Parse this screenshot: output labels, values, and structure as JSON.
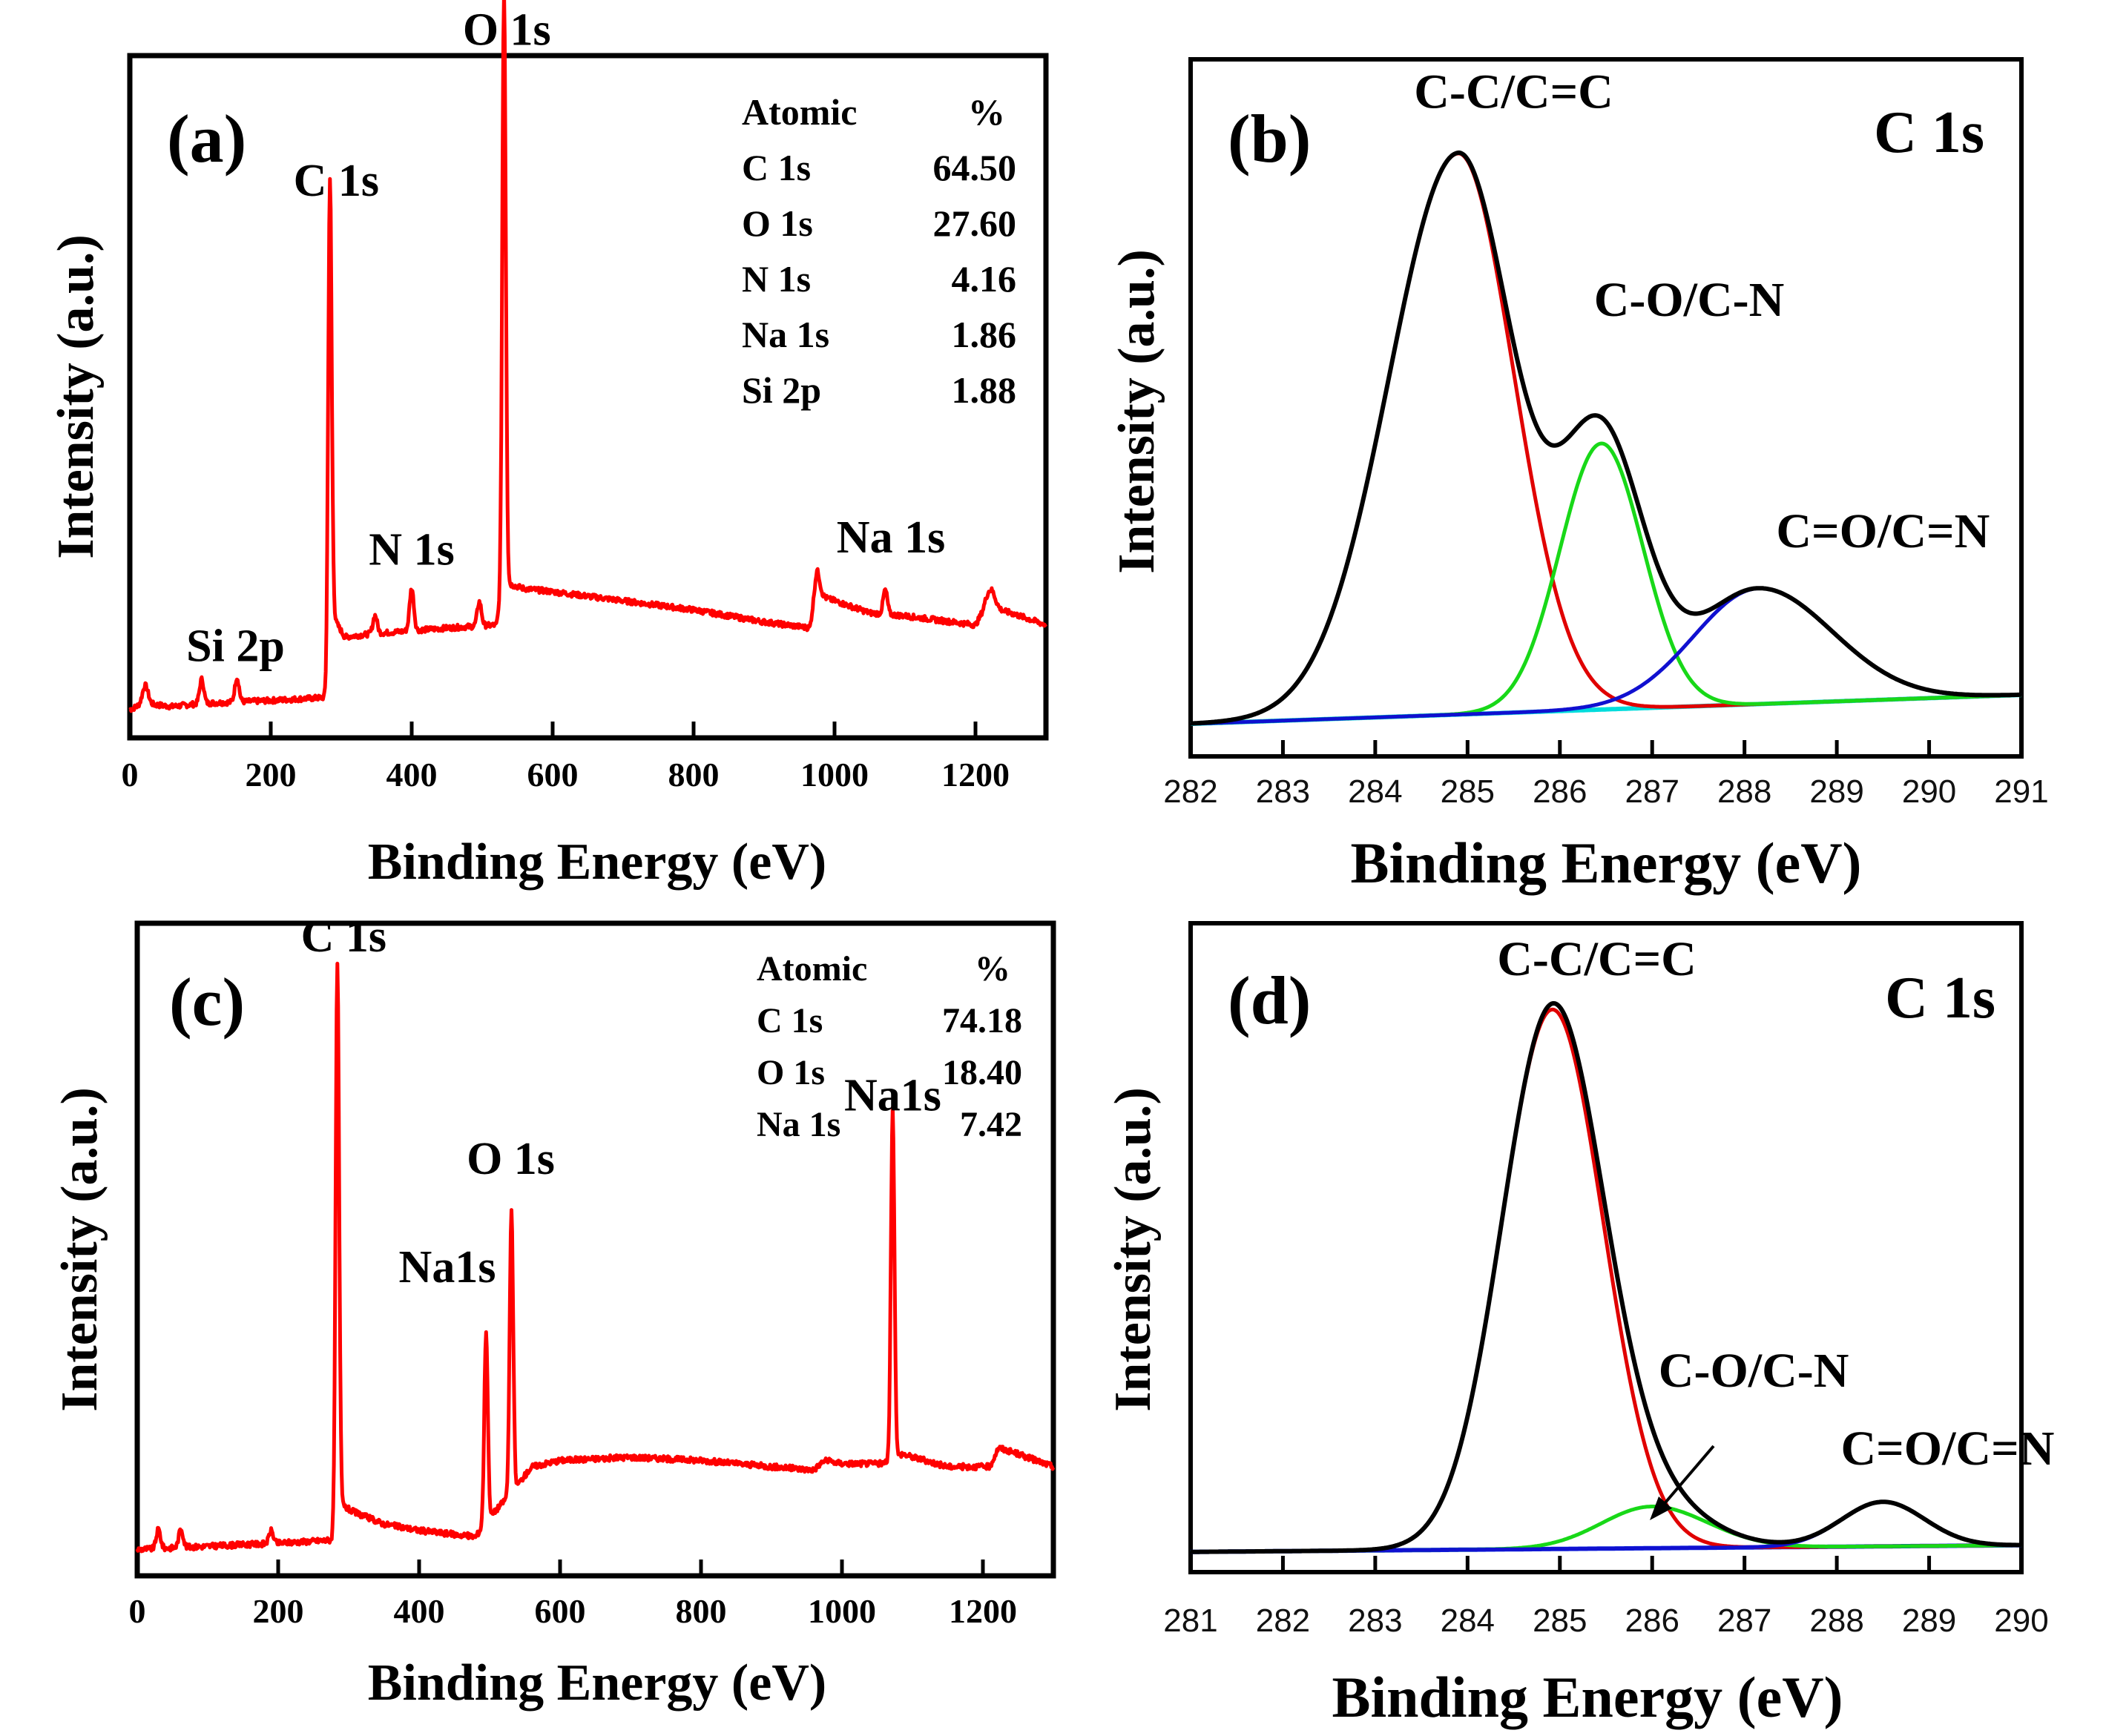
{
  "chart_data": [
    {
      "panel": "a",
      "type": "line",
      "panel_label": "(a)",
      "xlabel": "Binding Energy (eV)",
      "ylabel": "Intensity (a.u.)",
      "xlim": [
        0,
        1300
      ],
      "ylim": [
        0,
        100
      ],
      "xticks": [
        "0",
        "200",
        "400",
        "600",
        "800",
        "1000",
        "1200"
      ],
      "xtick_values": [
        0,
        200,
        400,
        600,
        800,
        1000,
        1200
      ],
      "color": "#ff0000",
      "baseline": [
        [
          0,
          1
        ],
        [
          20,
          2
        ],
        [
          60,
          1.5
        ],
        [
          100,
          2
        ],
        [
          200,
          2.5
        ],
        [
          278,
          3
        ],
        [
          290,
          16
        ],
        [
          305,
          13
        ],
        [
          340,
          13.5
        ],
        [
          395,
          14
        ],
        [
          450,
          14.5
        ],
        [
          520,
          15
        ],
        [
          531,
          22
        ],
        [
          560,
          21
        ],
        [
          600,
          20.5
        ],
        [
          700,
          19
        ],
        [
          800,
          17.5
        ],
        [
          900,
          15.5
        ],
        [
          965,
          14.5
        ],
        [
          975,
          20
        ],
        [
          1000,
          19
        ],
        [
          1050,
          17
        ],
        [
          1100,
          16.5
        ],
        [
          1200,
          15
        ],
        [
          1215,
          18
        ],
        [
          1250,
          17
        ],
        [
          1300,
          15
        ]
      ],
      "peaks": [
        {
          "x": 22,
          "height": 3,
          "width": 4
        },
        {
          "x": 102,
          "height": 4,
          "width": 3
        },
        {
          "x": 152,
          "height": 4,
          "width": 3
        },
        {
          "x": 284,
          "height": 79,
          "width": 2.5
        },
        {
          "x": 348,
          "height": 3,
          "width": 3
        },
        {
          "x": 400,
          "height": 7,
          "width": 3
        },
        {
          "x": 496,
          "height": 4,
          "width": 3
        },
        {
          "x": 531,
          "height": 98,
          "width": 2.5
        },
        {
          "x": 975,
          "height": 4,
          "width": 4
        },
        {
          "x": 1072,
          "height": 4,
          "width": 3
        },
        {
          "x": 1222,
          "height": 3,
          "width": 6
        }
      ],
      "annotations": [
        {
          "text": "Si 2p",
          "x": 150,
          "y": 9,
          "anchor": "middle"
        },
        {
          "text": "C 1s",
          "x": 293,
          "y": 86,
          "anchor": "middle"
        },
        {
          "text": "N 1s",
          "x": 400,
          "y": 25,
          "anchor": "middle"
        },
        {
          "text": "O 1s",
          "x": 535,
          "y": 111,
          "anchor": "middle"
        },
        {
          "text": "Na 1s",
          "x": 1080,
          "y": 27,
          "anchor": "middle"
        }
      ],
      "table": {
        "header": [
          "Atomic",
          "%"
        ],
        "rows": [
          [
            "C 1s",
            "64.50"
          ],
          [
            "O 1s",
            "27.60"
          ],
          [
            "N 1s",
            "4.16"
          ],
          [
            "Na 1s",
            "1.86"
          ],
          [
            "Si 2p",
            "1.88"
          ]
        ]
      }
    },
    {
      "panel": "b",
      "type": "line",
      "panel_label": "(b)",
      "title": "C 1s",
      "xlabel": "Binding Energy (eV)",
      "ylabel": "Intensity (a.u.)",
      "xlim": [
        282,
        291
      ],
      "ylim": [
        0,
        100
      ],
      "xticks": [
        "282",
        "283",
        "284",
        "285",
        "286",
        "287",
        "288",
        "289",
        "290",
        "291"
      ],
      "xtick_values": [
        282,
        283,
        284,
        285,
        286,
        287,
        288,
        289,
        290,
        291
      ],
      "components": [
        {
          "name": "C-C/C=C",
          "color": "#e00000",
          "center": 284.9,
          "height": 97,
          "sigma_left": 0.75,
          "sigma_right": 0.6
        },
        {
          "name": "C-O/C-N",
          "color": "#18d818",
          "center": 286.45,
          "height": 46,
          "sigma_left": 0.45,
          "sigma_right": 0.45
        },
        {
          "name": "C=O/C=N",
          "color": "#1010d0",
          "center": 288.15,
          "height": 20,
          "sigma_left": 0.7,
          "sigma_right": 0.8
        }
      ],
      "background": {
        "name": "background",
        "color": "#00dcdc",
        "start": 0.5,
        "end": 5.5
      },
      "envelope_color": "#000000",
      "annotations": [
        {
          "text": "C-C/C=C",
          "x": 285.5,
          "y": 107,
          "anchor": "middle"
        },
        {
          "text": "C-O/C-N",
          "x": 287.4,
          "y": 71,
          "anchor": "middle"
        },
        {
          "text": "C=O/C=N",
          "x": 289.5,
          "y": 31,
          "anchor": "middle"
        }
      ]
    },
    {
      "panel": "c",
      "type": "line",
      "panel_label": "(c)",
      "xlabel": "Binding Energy (eV)",
      "ylabel": "Intensity (a.u.)",
      "xlim": [
        0,
        1300
      ],
      "ylim": [
        0,
        100
      ],
      "xticks": [
        "0",
        "200",
        "400",
        "600",
        "800",
        "1000",
        "1200"
      ],
      "xtick_values": [
        0,
        200,
        400,
        600,
        800,
        1000,
        1200
      ],
      "color": "#ff0000",
      "baseline": [
        [
          0,
          1
        ],
        [
          100,
          1.5
        ],
        [
          200,
          2
        ],
        [
          280,
          2.5
        ],
        [
          290,
          8
        ],
        [
          305,
          7
        ],
        [
          350,
          5
        ],
        [
          400,
          4
        ],
        [
          480,
          3
        ],
        [
          500,
          6
        ],
        [
          531,
          10
        ],
        [
          560,
          14
        ],
        [
          600,
          15
        ],
        [
          700,
          15.5
        ],
        [
          800,
          15
        ],
        [
          900,
          14
        ],
        [
          960,
          13.5
        ],
        [
          975,
          15
        ],
        [
          1000,
          14.5
        ],
        [
          1060,
          14.5
        ],
        [
          1085,
          16
        ],
        [
          1150,
          14
        ],
        [
          1210,
          14
        ],
        [
          1222,
          17
        ],
        [
          1250,
          16
        ],
        [
          1300,
          14
        ]
      ],
      "peaks": [
        {
          "x": 30,
          "height": 3,
          "width": 3
        },
        {
          "x": 62,
          "height": 3,
          "width": 3
        },
        {
          "x": 190,
          "height": 2,
          "width": 3
        },
        {
          "x": 284,
          "height": 88,
          "width": 2.5
        },
        {
          "x": 495,
          "height": 30,
          "width": 2.5
        },
        {
          "x": 531,
          "height": 44,
          "width": 2.5
        },
        {
          "x": 1072,
          "height": 55,
          "width": 2.5
        }
      ],
      "annotations": [
        {
          "text": "C 1s",
          "x": 293,
          "y": 95,
          "anchor": "middle"
        },
        {
          "text": "Na1s",
          "x": 440,
          "y": 43,
          "anchor": "middle"
        },
        {
          "text": "O 1s",
          "x": 530,
          "y": 60,
          "anchor": "middle"
        },
        {
          "text": "Na1s",
          "x": 1072,
          "y": 70,
          "anchor": "middle"
        }
      ],
      "table": {
        "header": [
          "Atomic",
          "%"
        ],
        "rows": [
          [
            "C 1s",
            "74.18"
          ],
          [
            "O 1s",
            "18.40"
          ],
          [
            "Na 1s",
            "7.42"
          ]
        ]
      }
    },
    {
      "panel": "d",
      "type": "line",
      "panel_label": "(d)",
      "title": "C 1s",
      "xlabel": "Binding Energy (eV)",
      "ylabel": "Intensity (a.u.)",
      "xlim": [
        281,
        290
      ],
      "ylim": [
        0,
        100
      ],
      "xticks": [
        "281",
        "282",
        "283",
        "284",
        "285",
        "286",
        "287",
        "288",
        "289",
        "290"
      ],
      "xtick_values": [
        281,
        282,
        283,
        284,
        285,
        286,
        287,
        288,
        289,
        290
      ],
      "components": [
        {
          "name": "C-C/C=C",
          "color": "#e00000",
          "center": 284.92,
          "height": 97,
          "sigma_left": 0.55,
          "sigma_right": 0.55
        },
        {
          "name": "C-O/C-N",
          "color": "#18d818",
          "center": 286.0,
          "height": 7.5,
          "sigma_left": 0.55,
          "sigma_right": 0.6
        },
        {
          "name": "C=O/C=N",
          "color": "#1010d0",
          "center": 288.5,
          "height": 8,
          "sigma_left": 0.45,
          "sigma_right": 0.45
        }
      ],
      "background": {
        "name": "background",
        "color": "#1030e0",
        "start": 0.3,
        "end": 1.5
      },
      "envelope_color": "#000000",
      "annotations": [
        {
          "text": "C-C/C=C",
          "x": 285.4,
          "y": 104,
          "anchor": "middle"
        },
        {
          "text": "C-O/C-N",
          "x": 287.1,
          "y": 30,
          "anchor": "middle"
        },
        {
          "text": "C=O/C=N",
          "x": 289.2,
          "y": 16,
          "anchor": "middle"
        }
      ]
    }
  ]
}
